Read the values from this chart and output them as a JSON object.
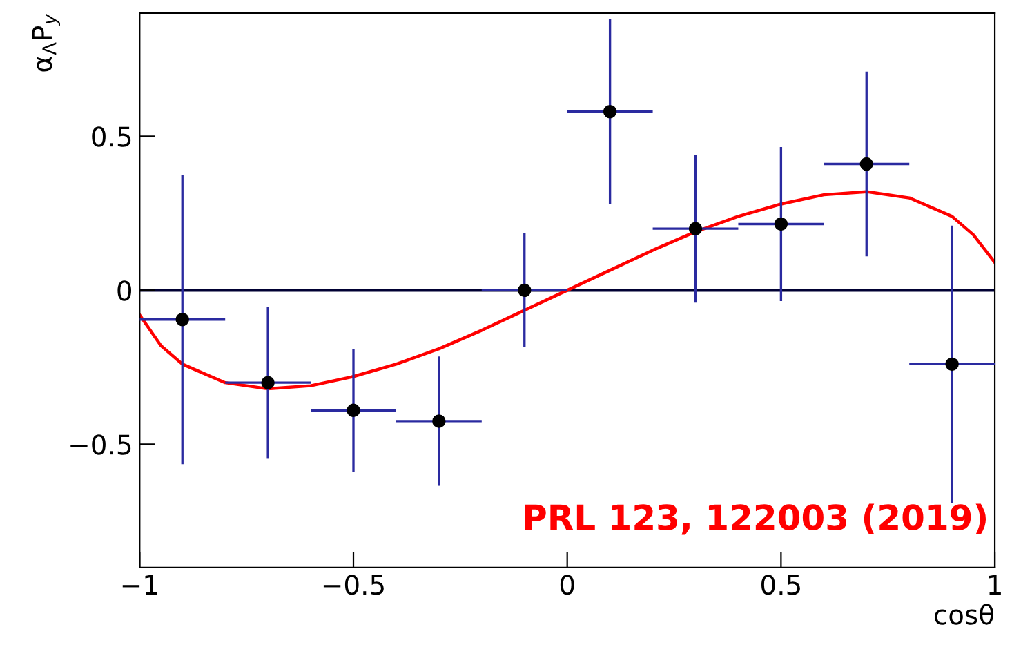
{
  "chart_data": {
    "type": "scatter",
    "xlabel": "cosθ",
    "ylabel": "α$_{Λ}$P$_{y}$",
    "xlim": [
      -1,
      1
    ],
    "xticks": [
      -1,
      -0.5,
      0,
      0.5,
      1
    ],
    "ylim": [
      -0.9,
      0.9
    ],
    "yticks": [
      -0.5,
      0,
      0.5
    ],
    "grid": false,
    "legend": false,
    "marker": "circle",
    "series": [
      {
        "color": "#000000",
        "x": [
          -0.9,
          -0.7,
          -0.5,
          -0.3,
          -0.1,
          0.1,
          0.3,
          0.5,
          0.7,
          0.9
        ],
        "values": [
          -0.095,
          -0.3,
          -0.39,
          -0.425,
          0,
          0.58,
          0.2,
          0.215,
          0.41,
          -0.24
        ],
        "errors": [
          0.47,
          0.245,
          0.2,
          0.21,
          0.185,
          0.3,
          0.24,
          0.25,
          0.3,
          0.45
        ],
        "xerrors": [
          0.1,
          0.1,
          0.1,
          0.1,
          0.1,
          0.1,
          0.1,
          0.1,
          0.1,
          0.1
        ]
      },
      {
        "type": "line",
        "color": "#ff0000",
        "marker": "none",
        "x": [
          -1,
          -0.95,
          -0.9,
          -0.8,
          -0.7,
          -0.6,
          -0.5,
          -0.4,
          -0.3,
          -0.2,
          -0.1,
          0,
          0.1,
          0.2,
          0.3,
          0.4,
          0.5,
          0.6,
          0.7,
          0.8,
          0.9,
          0.95,
          1
        ],
        "values": [
          -0.08,
          -0.18,
          -0.24,
          -0.3,
          -0.32,
          -0.31,
          -0.28,
          -0.24,
          -0.19,
          -0.13,
          -0.065,
          0,
          0.065,
          0.13,
          0.19,
          0.24,
          0.28,
          0.31,
          0.32,
          0.3,
          0.24,
          0.18,
          0.09
        ]
      }
    ],
    "ref_lines": [
      {
        "axis": "y",
        "value": 0,
        "color": "#000033"
      }
    ],
    "annotations": [
      "PRL 123, 122003 (2019)"
    ]
  }
}
